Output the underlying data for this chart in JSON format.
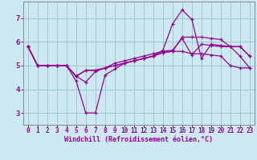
{
  "xlabel": "Windchill (Refroidissement éolien,°C)",
  "background_color": "#cce8f0",
  "grid_color": "#99cccc",
  "line_color": "#990099",
  "spine_color": "#888888",
  "xlim": [
    -0.5,
    23.5
  ],
  "ylim": [
    2.5,
    7.7
  ],
  "yticks": [
    3,
    4,
    5,
    6,
    7
  ],
  "xticks": [
    0,
    1,
    2,
    3,
    4,
    5,
    6,
    7,
    8,
    9,
    10,
    11,
    12,
    13,
    14,
    15,
    16,
    17,
    18,
    19,
    20,
    21,
    22,
    23
  ],
  "series": [
    [
      5.8,
      5.0,
      5.0,
      5.0,
      5.0,
      4.55,
      4.3,
      4.75,
      4.9,
      5.1,
      5.2,
      5.3,
      5.4,
      5.5,
      5.6,
      5.65,
      6.15,
      5.45,
      5.9,
      5.85,
      5.8,
      5.8,
      5.4,
      4.9
    ],
    [
      5.8,
      5.0,
      5.0,
      5.0,
      5.0,
      4.35,
      3.0,
      3.0,
      4.6,
      4.85,
      5.1,
      5.2,
      5.3,
      5.4,
      5.65,
      6.75,
      7.35,
      6.95,
      5.3,
      5.9,
      5.85,
      5.8,
      5.8,
      5.4
    ],
    [
      5.8,
      5.0,
      5.0,
      5.0,
      5.0,
      4.55,
      4.8,
      4.8,
      4.9,
      5.0,
      5.1,
      5.2,
      5.3,
      5.4,
      5.55,
      5.6,
      6.2,
      6.2,
      6.2,
      6.15,
      6.1,
      5.8,
      5.8,
      5.4
    ],
    [
      5.8,
      5.0,
      5.0,
      5.0,
      5.0,
      4.55,
      4.8,
      4.8,
      4.9,
      5.0,
      5.1,
      5.2,
      5.3,
      5.4,
      5.55,
      5.6,
      5.6,
      5.5,
      5.5,
      5.45,
      5.4,
      5.0,
      4.9,
      4.9
    ]
  ],
  "xlabel_fontsize": 6.0,
  "tick_fontsize": 5.5,
  "ytick_fontsize": 6.5
}
